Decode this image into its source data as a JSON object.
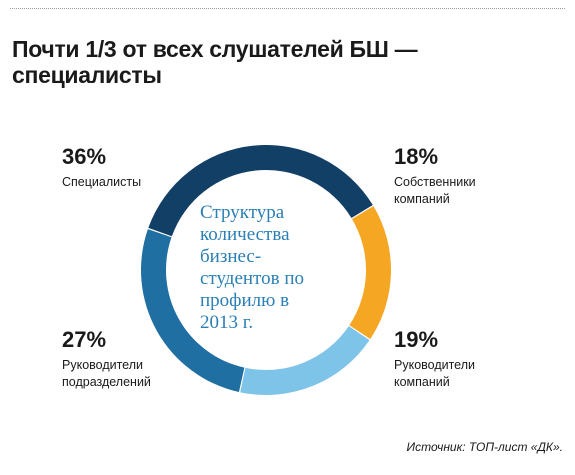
{
  "header": {
    "title_line1": "Почти 1/3 от всех слушателей БШ —",
    "title_line2": "специалисты"
  },
  "chart_data": {
    "type": "pie",
    "donut": true,
    "center_label": "Структура\nколичества\nбизнес-\nстудентов по\nпрофилю в\n2013 г.",
    "slices": [
      {
        "label": "Собственники\nкомпаний",
        "value": 18,
        "value_label": "18%",
        "color": "#f5a623"
      },
      {
        "label": "Руководители\nкомпаний",
        "value": 19,
        "value_label": "19%",
        "color": "#7ec3e8"
      },
      {
        "label": "Руководители\nподразделений",
        "value": 27,
        "value_label": "27%",
        "color": "#1f6fa3"
      },
      {
        "label": "Специалисты",
        "value": 36,
        "value_label": "36%",
        "color": "#123f66"
      }
    ]
  },
  "footer": {
    "source": "Источник: ТОП-лист «ДК»."
  }
}
